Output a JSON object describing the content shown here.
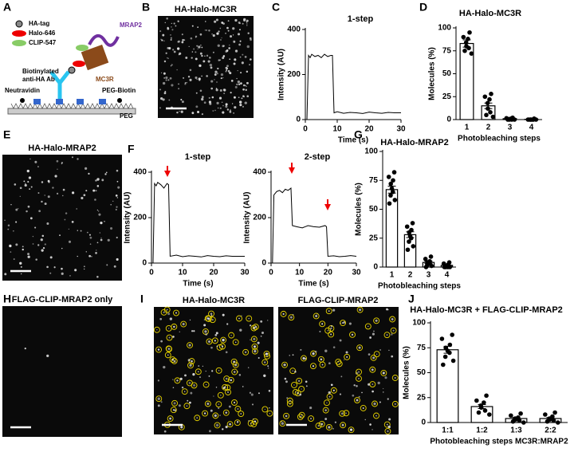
{
  "panel_labels": [
    "A",
    "B",
    "C",
    "D",
    "E",
    "F",
    "G",
    "H",
    "I",
    "J"
  ],
  "schematic": {
    "legend": [
      "HA-tag",
      "Halo-646",
      "CLIP-547"
    ],
    "mrap2": "MRAP2",
    "mc3r": "MC3R",
    "antibody": [
      "Biotinylated",
      "anti-HA Ab"
    ],
    "neutravidin": "Neutravidin",
    "peg_biotin": "PEG-Biotin",
    "peg": "PEG"
  },
  "images": [
    {
      "title": "HA-Halo-MC3R"
    },
    {
      "title": "HA-Halo-MRAP2"
    },
    {
      "title": "FLAG-CLIP-MRAP2 only"
    },
    {
      "title": "HA-Halo-MC3R"
    },
    {
      "title": "FLAG-CLIP-MRAP2"
    }
  ],
  "chart_data": [
    {
      "type": "line",
      "title": "1-step",
      "xlabel": "Time (s)",
      "ylabel": "Intensity (AU)",
      "color": "#000000",
      "x": [
        0,
        0.5,
        1,
        1.5,
        2,
        3,
        4,
        5,
        6,
        7,
        8,
        8.5,
        9,
        10,
        12,
        14,
        16,
        18,
        20,
        22,
        24,
        26,
        28,
        30
      ],
      "values": [
        0,
        0,
        285,
        275,
        290,
        280,
        285,
        275,
        290,
        280,
        285,
        285,
        30,
        35,
        28,
        32,
        30,
        27,
        33,
        30,
        28,
        32,
        30,
        30
      ],
      "xlim": [
        0,
        30
      ],
      "xticks": [
        0,
        10,
        20,
        30
      ],
      "ylim": [
        0,
        400
      ],
      "yticks": [
        0,
        200,
        400
      ]
    },
    {
      "type": "bar",
      "title": "HA-Halo-MC3R",
      "xlabel": "Photobleaching steps",
      "ylabel": "Molecules (%)",
      "categories": [
        "1",
        "2",
        "3",
        "4"
      ],
      "values": [
        83,
        15,
        1,
        0.3
      ],
      "errors": [
        4,
        3,
        0.5,
        0.2
      ],
      "points": [
        [
          95,
          90,
          88,
          84,
          80,
          78,
          75,
          72
        ],
        [
          28,
          25,
          22,
          18,
          12,
          8,
          5,
          3
        ],
        [
          2,
          1.5,
          1,
          0.5,
          0,
          0,
          0,
          0
        ],
        [
          1,
          0,
          0,
          0,
          0,
          0,
          0,
          0
        ]
      ],
      "ylim": [
        0,
        100
      ],
      "yticks": [
        0,
        25,
        50,
        75,
        100
      ]
    },
    {
      "type": "line",
      "title": "1-step",
      "xlabel": "Time (s)",
      "ylabel": "Intensity (AU)",
      "color": "#000000",
      "x": [
        0,
        0.5,
        1,
        1.5,
        2,
        3,
        4,
        5,
        5.5,
        6,
        8,
        10,
        12,
        14,
        16,
        18,
        20,
        22,
        24,
        26,
        28,
        30
      ],
      "values": [
        0,
        0,
        350,
        340,
        355,
        345,
        330,
        350,
        345,
        30,
        35,
        28,
        32,
        30,
        27,
        33,
        30,
        28,
        32,
        30,
        30,
        30
      ],
      "xlim": [
        0,
        30
      ],
      "xticks": [
        0,
        10,
        20,
        30
      ],
      "ylim": [
        0,
        400
      ],
      "yticks": [
        0,
        200,
        400
      ]
    },
    {
      "type": "line",
      "title": "2-step",
      "xlabel": "Time (s)",
      "ylabel": "Intensity (AU)",
      "color": "#000000",
      "x": [
        0,
        0.5,
        1,
        2,
        3,
        4,
        5,
        6,
        7,
        7.5,
        9,
        11,
        13,
        15,
        17,
        19,
        19.5,
        20,
        22,
        24,
        26,
        28,
        30
      ],
      "values": [
        0,
        0,
        300,
        315,
        320,
        310,
        325,
        320,
        330,
        165,
        160,
        155,
        165,
        160,
        158,
        165,
        160,
        30,
        32,
        28,
        30,
        33,
        30
      ],
      "xlim": [
        0,
        30
      ],
      "xticks": [
        0,
        10,
        20,
        30
      ],
      "ylim": [
        0,
        400
      ],
      "yticks": [
        0,
        200,
        400
      ]
    },
    {
      "type": "bar",
      "title": "HA-Halo-MRAP2",
      "xlabel": "Photobleaching steps",
      "ylabel": "Molecules (%)",
      "categories": [
        "1",
        "2",
        "3",
        "4"
      ],
      "values": [
        67,
        28,
        4,
        1.5
      ],
      "errors": [
        3,
        2.5,
        1,
        0.5
      ],
      "points": [
        [
          82,
          78,
          75,
          72,
          68,
          65,
          62,
          58,
          55
        ],
        [
          38,
          35,
          32,
          30,
          27,
          25,
          22,
          18,
          15
        ],
        [
          9,
          7,
          5,
          4,
          3,
          3,
          2,
          1,
          0
        ],
        [
          4,
          3,
          2,
          1,
          1,
          0,
          0,
          0,
          0
        ]
      ],
      "ylim": [
        0,
        100
      ],
      "yticks": [
        0,
        25,
        50,
        75,
        100
      ]
    },
    {
      "type": "bar",
      "title": "HA-Halo-MC3R + FLAG-CLIP-MRAP2",
      "xlabel": "Photobleaching steps MC3R:MRAP2",
      "ylabel": "Molecules (%)",
      "categories": [
        "1:1",
        "1:2",
        "1:3",
        "2:2"
      ],
      "values": [
        73,
        16,
        4,
        4
      ],
      "errors": [
        3.5,
        2,
        1,
        1
      ],
      "points": [
        [
          88,
          84,
          78,
          75,
          72,
          70,
          66,
          62,
          58
        ],
        [
          27,
          22,
          20,
          17,
          15,
          12,
          10,
          8
        ],
        [
          9,
          7,
          5,
          4,
          3,
          2,
          1,
          0
        ],
        [
          10,
          8,
          6,
          4,
          3,
          2,
          1,
          0
        ]
      ],
      "ylim": [
        0,
        100
      ],
      "yticks": [
        0,
        25,
        50,
        75,
        100
      ]
    }
  ]
}
